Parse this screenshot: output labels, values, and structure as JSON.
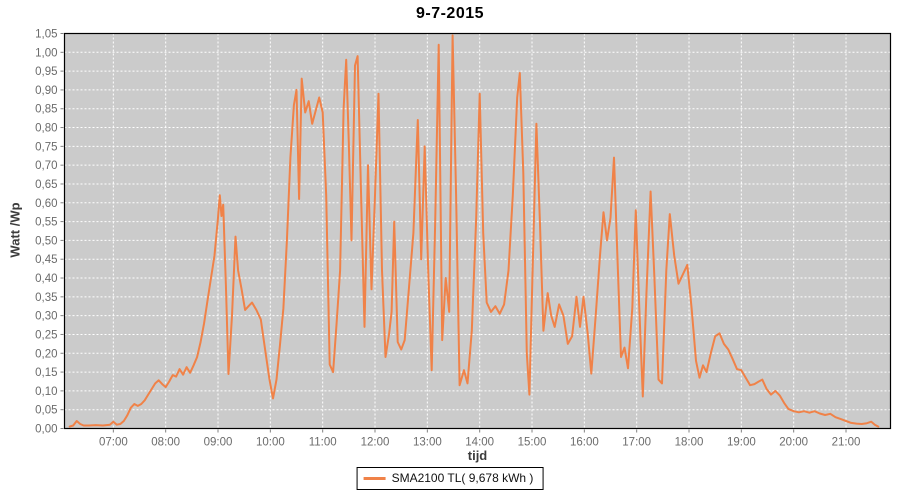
{
  "header": {
    "title": "9-7-2015"
  },
  "legend": {
    "border_color": "#000000",
    "background": "#ffffff"
  },
  "chart_data": {
    "type": "line",
    "title": "9-7-2015",
    "xlabel": "tijd",
    "ylabel": "Watt /Wp",
    "ylim": [
      0,
      1.05
    ],
    "y_tick_step": 0.05,
    "y_tick_format": "comma-decimal-2",
    "x_ticks": [
      "07:00",
      "08:00",
      "09:00",
      "10:00",
      "11:00",
      "12:00",
      "13:00",
      "14:00",
      "15:00",
      "16:00",
      "17:00",
      "18:00",
      "19:00",
      "20:00",
      "21:00"
    ],
    "x_domain_minutes": [
      364,
      1311
    ],
    "grid": true,
    "grid_color": "#ffffff",
    "plot_bg": "#cbcbcb",
    "border_color": "#000000",
    "tick_color": "#808080",
    "tick_label_color": "#6b6b6b",
    "legend_position": "bottom-center",
    "series": [
      {
        "name": "SMA2100 TL( 9,678 kWh )",
        "color": "#f08248",
        "points": [
          [
            "06:10",
            0.005
          ],
          [
            "06:14",
            0.008
          ],
          [
            "06:18",
            0.02
          ],
          [
            "06:22",
            0.012
          ],
          [
            "06:26",
            0.008
          ],
          [
            "06:32",
            0.008
          ],
          [
            "06:40",
            0.009
          ],
          [
            "06:48",
            0.008
          ],
          [
            "06:56",
            0.01
          ],
          [
            "07:00",
            0.018
          ],
          [
            "07:04",
            0.01
          ],
          [
            "07:08",
            0.012
          ],
          [
            "07:12",
            0.02
          ],
          [
            "07:16",
            0.035
          ],
          [
            "07:20",
            0.055
          ],
          [
            "07:24",
            0.065
          ],
          [
            "07:28",
            0.06
          ],
          [
            "07:32",
            0.065
          ],
          [
            "07:36",
            0.075
          ],
          [
            "07:40",
            0.09
          ],
          [
            "07:44",
            0.105
          ],
          [
            "07:48",
            0.12
          ],
          [
            "07:52",
            0.128
          ],
          [
            "07:56",
            0.118
          ],
          [
            "08:00",
            0.11
          ],
          [
            "08:04",
            0.125
          ],
          [
            "08:08",
            0.142
          ],
          [
            "08:12",
            0.138
          ],
          [
            "08:16",
            0.158
          ],
          [
            "08:20",
            0.143
          ],
          [
            "08:24",
            0.163
          ],
          [
            "08:28",
            0.148
          ],
          [
            "08:32",
            0.168
          ],
          [
            "08:36",
            0.19
          ],
          [
            "08:40",
            0.23
          ],
          [
            "08:44",
            0.28
          ],
          [
            "08:48",
            0.34
          ],
          [
            "08:52",
            0.4
          ],
          [
            "08:56",
            0.46
          ],
          [
            "09:00",
            0.56
          ],
          [
            "09:02",
            0.62
          ],
          [
            "09:04",
            0.565
          ],
          [
            "09:06",
            0.595
          ],
          [
            "09:09",
            0.38
          ],
          [
            "09:12",
            0.145
          ],
          [
            "09:16",
            0.3
          ],
          [
            "09:20",
            0.51
          ],
          [
            "09:23",
            0.42
          ],
          [
            "09:27",
            0.37
          ],
          [
            "09:31",
            0.315
          ],
          [
            "09:35",
            0.325
          ],
          [
            "09:39",
            0.335
          ],
          [
            "09:44",
            0.315
          ],
          [
            "09:49",
            0.29
          ],
          [
            "09:54",
            0.21
          ],
          [
            "09:59",
            0.13
          ],
          [
            "10:03",
            0.08
          ],
          [
            "10:07",
            0.13
          ],
          [
            "10:11",
            0.22
          ],
          [
            "10:15",
            0.32
          ],
          [
            "10:19",
            0.5
          ],
          [
            "10:23",
            0.72
          ],
          [
            "10:27",
            0.86
          ],
          [
            "10:30",
            0.9
          ],
          [
            "10:33",
            0.61
          ],
          [
            "10:36",
            0.93
          ],
          [
            "10:40",
            0.84
          ],
          [
            "10:44",
            0.87
          ],
          [
            "10:48",
            0.81
          ],
          [
            "10:52",
            0.845
          ],
          [
            "10:56",
            0.88
          ],
          [
            "11:00",
            0.84
          ],
          [
            "11:04",
            0.62
          ],
          [
            "11:08",
            0.17
          ],
          [
            "11:12",
            0.15
          ],
          [
            "11:16",
            0.28
          ],
          [
            "11:20",
            0.42
          ],
          [
            "11:24",
            0.85
          ],
          [
            "11:27",
            0.98
          ],
          [
            "11:30",
            0.76
          ],
          [
            "11:33",
            0.5
          ],
          [
            "11:37",
            0.965
          ],
          [
            "11:40",
            0.99
          ],
          [
            "11:44",
            0.62
          ],
          [
            "11:48",
            0.27
          ],
          [
            "11:52",
            0.7
          ],
          [
            "11:56",
            0.37
          ],
          [
            "12:00",
            0.62
          ],
          [
            "12:04",
            0.89
          ],
          [
            "12:08",
            0.42
          ],
          [
            "12:12",
            0.19
          ],
          [
            "12:16",
            0.25
          ],
          [
            "12:19",
            0.31
          ],
          [
            "12:22",
            0.55
          ],
          [
            "12:26",
            0.23
          ],
          [
            "12:30",
            0.21
          ],
          [
            "12:34",
            0.235
          ],
          [
            "12:39",
            0.375
          ],
          [
            "12:44",
            0.52
          ],
          [
            "12:49",
            0.82
          ],
          [
            "12:53",
            0.45
          ],
          [
            "12:57",
            0.75
          ],
          [
            "13:01",
            0.42
          ],
          [
            "13:05",
            0.155
          ],
          [
            "13:09",
            0.55
          ],
          [
            "13:13",
            1.02
          ],
          [
            "13:17",
            0.235
          ],
          [
            "13:21",
            0.4
          ],
          [
            "13:25",
            0.31
          ],
          [
            "13:29",
            1.045
          ],
          [
            "13:33",
            0.62
          ],
          [
            "13:37",
            0.115
          ],
          [
            "13:42",
            0.155
          ],
          [
            "13:46",
            0.12
          ],
          [
            "13:51",
            0.26
          ],
          [
            "13:56",
            0.56
          ],
          [
            "14:00",
            0.89
          ],
          [
            "14:04",
            0.52
          ],
          [
            "14:08",
            0.335
          ],
          [
            "14:13",
            0.31
          ],
          [
            "14:18",
            0.325
          ],
          [
            "14:23",
            0.305
          ],
          [
            "14:28",
            0.33
          ],
          [
            "14:33",
            0.42
          ],
          [
            "14:38",
            0.62
          ],
          [
            "14:43",
            0.88
          ],
          [
            "14:46",
            0.945
          ],
          [
            "14:50",
            0.68
          ],
          [
            "14:54",
            0.2
          ],
          [
            "14:57",
            0.09
          ],
          [
            "15:01",
            0.45
          ],
          [
            "15:05",
            0.81
          ],
          [
            "15:09",
            0.55
          ],
          [
            "15:13",
            0.26
          ],
          [
            "15:18",
            0.36
          ],
          [
            "15:22",
            0.3
          ],
          [
            "15:26",
            0.27
          ],
          [
            "15:31",
            0.33
          ],
          [
            "15:36",
            0.3
          ],
          [
            "15:41",
            0.225
          ],
          [
            "15:46",
            0.245
          ],
          [
            "15:51",
            0.35
          ],
          [
            "15:55",
            0.27
          ],
          [
            "15:59",
            0.35
          ],
          [
            "16:04",
            0.25
          ],
          [
            "16:08",
            0.146
          ],
          [
            "16:13",
            0.3
          ],
          [
            "16:18",
            0.46
          ],
          [
            "16:22",
            0.575
          ],
          [
            "16:26",
            0.5
          ],
          [
            "16:30",
            0.56
          ],
          [
            "16:34",
            0.72
          ],
          [
            "16:38",
            0.45
          ],
          [
            "16:42",
            0.19
          ],
          [
            "16:46",
            0.215
          ],
          [
            "16:50",
            0.16
          ],
          [
            "16:55",
            0.32
          ],
          [
            "16:59",
            0.58
          ],
          [
            "17:03",
            0.32
          ],
          [
            "17:07",
            0.085
          ],
          [
            "17:11",
            0.35
          ],
          [
            "17:16",
            0.63
          ],
          [
            "17:20",
            0.42
          ],
          [
            "17:25",
            0.13
          ],
          [
            "17:29",
            0.12
          ],
          [
            "17:34",
            0.42
          ],
          [
            "17:38",
            0.57
          ],
          [
            "17:43",
            0.46
          ],
          [
            "17:48",
            0.385
          ],
          [
            "17:53",
            0.41
          ],
          [
            "17:58",
            0.435
          ],
          [
            "18:03",
            0.32
          ],
          [
            "18:08",
            0.18
          ],
          [
            "18:12",
            0.135
          ],
          [
            "18:16",
            0.168
          ],
          [
            "18:20",
            0.15
          ],
          [
            "18:25",
            0.2
          ],
          [
            "18:30",
            0.245
          ],
          [
            "18:35",
            0.253
          ],
          [
            "18:40",
            0.225
          ],
          [
            "18:45",
            0.21
          ],
          [
            "18:50",
            0.185
          ],
          [
            "18:55",
            0.158
          ],
          [
            "19:00",
            0.155
          ],
          [
            "19:05",
            0.135
          ],
          [
            "19:10",
            0.115
          ],
          [
            "19:15",
            0.118
          ],
          [
            "19:20",
            0.125
          ],
          [
            "19:24",
            0.13
          ],
          [
            "19:29",
            0.105
          ],
          [
            "19:34",
            0.09
          ],
          [
            "19:39",
            0.1
          ],
          [
            "19:44",
            0.088
          ],
          [
            "19:49",
            0.068
          ],
          [
            "19:54",
            0.052
          ],
          [
            "20:00",
            0.046
          ],
          [
            "20:06",
            0.043
          ],
          [
            "20:12",
            0.046
          ],
          [
            "20:18",
            0.042
          ],
          [
            "20:24",
            0.046
          ],
          [
            "20:30",
            0.04
          ],
          [
            "20:36",
            0.036
          ],
          [
            "20:42",
            0.039
          ],
          [
            "20:48",
            0.03
          ],
          [
            "20:54",
            0.025
          ],
          [
            "21:00",
            0.02
          ],
          [
            "21:06",
            0.015
          ],
          [
            "21:12",
            0.013
          ],
          [
            "21:18",
            0.012
          ],
          [
            "21:24",
            0.014
          ],
          [
            "21:29",
            0.018
          ],
          [
            "21:33",
            0.01
          ],
          [
            "21:37",
            0.005
          ]
        ]
      }
    ]
  }
}
